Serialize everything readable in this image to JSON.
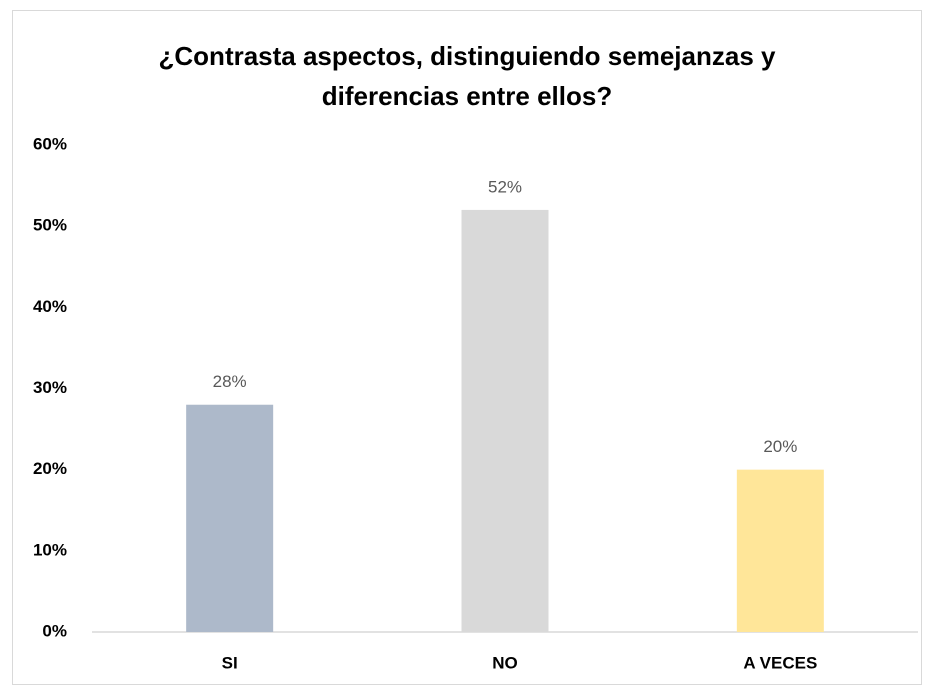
{
  "chart_data": {
    "type": "bar",
    "title": "¿Contrasta aspectos, distinguiendo semejanzas y diferencias entre ellos?",
    "categories": [
      "SI",
      "NO",
      "A VECES"
    ],
    "values": [
      28,
      52,
      20
    ],
    "value_labels": [
      "28%",
      "52%",
      "20%"
    ],
    "colors": [
      "#adb9ca",
      "#d9d9d9",
      "#ffe699"
    ],
    "ylim": [
      0,
      60
    ],
    "yticks": [
      {
        "value": 0,
        "label": "0%"
      },
      {
        "value": 10,
        "label": "10%"
      },
      {
        "value": 20,
        "label": "20%"
      },
      {
        "value": 30,
        "label": "30%"
      },
      {
        "value": 40,
        "label": "40%"
      },
      {
        "value": 50,
        "label": "50%"
      },
      {
        "value": 60,
        "label": "60%"
      }
    ],
    "grid": false
  }
}
